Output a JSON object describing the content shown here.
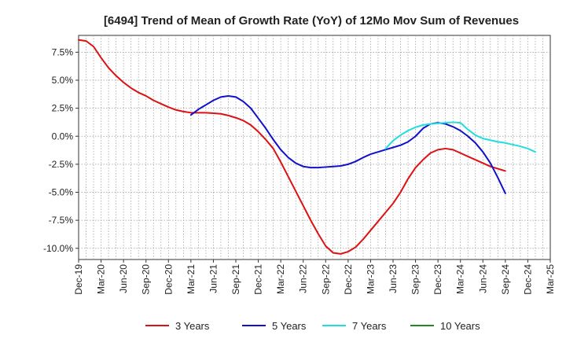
{
  "chart_data": {
    "type": "line",
    "title": "[6494]  Trend of Mean of Growth Rate (YoY) of 12Mo Mov Sum of Revenues",
    "xlabel": "",
    "ylabel": "",
    "x_tick_labels": [
      "Dec-19",
      "Mar-20",
      "Jun-20",
      "Sep-20",
      "Dec-20",
      "Mar-21",
      "Jun-21",
      "Sep-21",
      "Dec-21",
      "Mar-22",
      "Jun-22",
      "Sep-22",
      "Dec-22",
      "Mar-23",
      "Jun-23",
      "Sep-23",
      "Dec-23",
      "Mar-24",
      "Jun-24",
      "Sep-24",
      "Dec-24",
      "Mar-25"
    ],
    "xlim": [
      0,
      63
    ],
    "ylim": [
      -11.0,
      9.0
    ],
    "y_ticks": [
      7.5,
      5.0,
      2.5,
      0.0,
      -2.5,
      -5.0,
      -7.5,
      -10.0
    ],
    "y_tick_labels": [
      "7.5%",
      "5.0%",
      "2.5%",
      "0.0%",
      "-2.5%",
      "-5.0%",
      "-7.5%",
      "-10.0%"
    ],
    "grid": true,
    "legend_position": "bottom",
    "series": [
      {
        "name": "3 Years",
        "color": "#dd1111",
        "start_index": 0,
        "values": [
          8.6,
          8.5,
          8.0,
          7.0,
          6.1,
          5.4,
          4.8,
          4.3,
          3.9,
          3.6,
          3.2,
          2.9,
          2.6,
          2.35,
          2.2,
          2.1,
          2.1,
          2.1,
          2.05,
          2.0,
          1.85,
          1.65,
          1.4,
          1.0,
          0.4,
          -0.3,
          -1.1,
          -2.3,
          -3.6,
          -4.9,
          -6.2,
          -7.5,
          -8.7,
          -9.8,
          -10.4,
          -10.5,
          -10.3,
          -9.9,
          -9.2,
          -8.4,
          -7.6,
          -6.8,
          -6.0,
          -5.0,
          -3.8,
          -2.8,
          -2.1,
          -1.5,
          -1.2,
          -1.1,
          -1.2,
          -1.5,
          -1.8,
          -2.1,
          -2.4,
          -2.7,
          -2.9,
          -3.1
        ]
      },
      {
        "name": "5 Years",
        "color": "#1111cc",
        "start_index": 15,
        "values": [
          1.9,
          2.4,
          2.8,
          3.2,
          3.5,
          3.6,
          3.5,
          3.1,
          2.5,
          1.6,
          0.7,
          -0.3,
          -1.2,
          -1.9,
          -2.4,
          -2.7,
          -2.8,
          -2.8,
          -2.75,
          -2.7,
          -2.65,
          -2.5,
          -2.25,
          -1.9,
          -1.6,
          -1.4,
          -1.2,
          -1.0,
          -0.8,
          -0.5,
          0.0,
          0.7,
          1.1,
          1.2,
          1.1,
          0.85,
          0.5,
          0.0,
          -0.6,
          -1.4,
          -2.4,
          -3.7,
          -5.1
        ]
      },
      {
        "name": "7 Years",
        "color": "#22dddd",
        "start_index": 41,
        "values": [
          -1.1,
          -0.4,
          0.1,
          0.5,
          0.8,
          1.0,
          1.1,
          1.15,
          1.2,
          1.25,
          1.2,
          0.6,
          0.1,
          -0.2,
          -0.35,
          -0.5,
          -0.6,
          -0.75,
          -0.9,
          -1.1,
          -1.4
        ]
      },
      {
        "name": "10 Years",
        "color": "#228822",
        "start_index": 0,
        "values": []
      }
    ]
  }
}
